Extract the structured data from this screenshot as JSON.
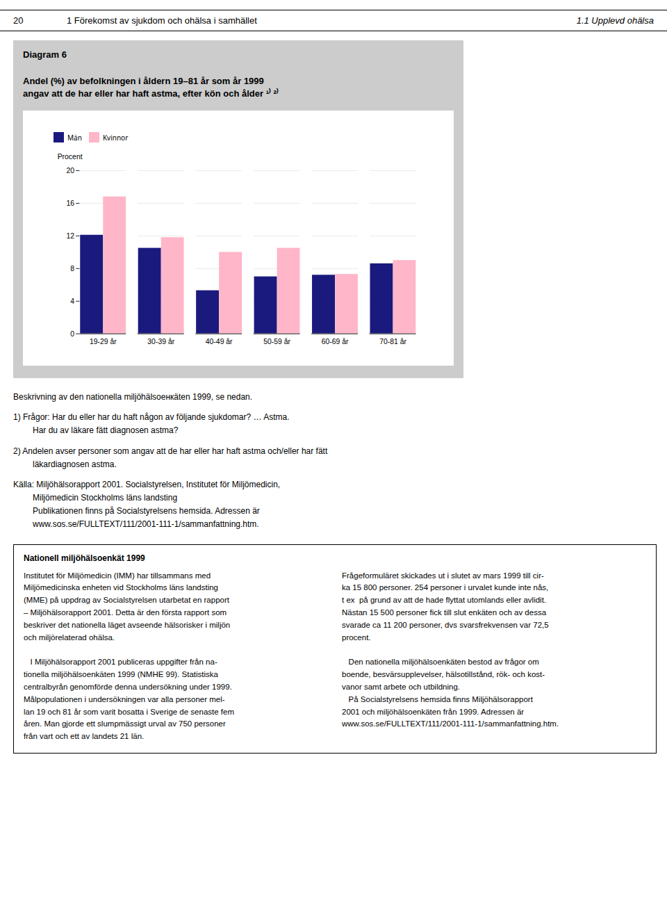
{
  "header": {
    "left": "20",
    "center": "1  Förekomst av sjukdom och ohälsa i samhället",
    "right": "1.1  Upplevd ohälsa"
  },
  "chart_data": {
    "type": "bar",
    "title": "Diagram 6",
    "subtitle": [
      "Andel (%) av befolkningen i åldern 19–81 år som år 1999",
      "angav att de har eller har haft astma, efter kön och ålder ¹⁾ ²⁾"
    ],
    "ylabel": "Procent",
    "categories": [
      "19-29 år",
      "30-39 år",
      "40-49 år",
      "50-59 år",
      "60-69 år",
      "70-81 år"
    ],
    "series": [
      {
        "name": "Män",
        "color": "#1a1a7e",
        "values": [
          12.1,
          10.5,
          5.3,
          7.0,
          7.2,
          8.6
        ]
      },
      {
        "name": "Kvinnor",
        "color": "#FFB6C8",
        "values": [
          16.8,
          11.8,
          10.0,
          10.5,
          7.3,
          9.0
        ]
      }
    ],
    "ylim": [
      0,
      20
    ],
    "yticks": [
      0,
      4,
      8,
      12,
      16,
      20
    ],
    "grid": true,
    "legend": "top"
  },
  "footnotes": [
    [
      "Beskrivning av den nationella miljöhälsoенкäten 1999, se nedan."
    ],
    [
      "1)  Frågor:  Har du eller har du haft någon av följande sjukdomar? … Astma.",
      "Har du av läkare fätt diagnosen astma?"
    ],
    [
      "2)  Andelen avser personer som angav att de har eller har haft astma och/eller har fätt",
      "läkardiagnosen astma."
    ],
    [
      "Källa:  Miljöhälsorapport 2001. Socialstyrelsen, Institutet för Miljömedicin,",
      "Miljömedicin Stockholms läns landsting",
      "Publikationen finns på Socialstyrelsens hemsida. Adressen är",
      "www.sos.se/FULLTEXT/111/2001-111-1/sammanfattning.htm."
    ]
  ],
  "info_box": {
    "title": "Nationell miljöhälsoenkät 1999",
    "columns": [
      [
        [
          "Institutet för Miljömedicin (IMM) har tillsammans med",
          "Miljömedicinska enheten vid Stockholms läns landsting",
          "(MME) på uppdrag av Socialstyrelsen utarbetat en rapport",
          "– Miljöhälsorapport 2001. Detta är den första rapport som",
          "beskriver det nationella läget avseende hälsorisker i miljön",
          "och miljörelaterad ohälsa."
        ],
        [
          "   I Miljöhälsorapport 2001 publiceras uppgifter från na-",
          "tionella miljöhälsoenkäten 1999 (NMHE 99). Statistiska",
          "centralbyrån genomförde denna undersökning under 1999.",
          "Målpopulationen i undersökningen var alla personer mel-",
          "lan 19 och 81 år som varit bosatta i Sverige de senaste fem",
          "åren. Man gjorde ett slumpmässigt urval av 750 personer",
          "från vart och ett av landets 21 län."
        ]
      ],
      [
        [
          "Frågeformuläret skickades ut i slutet av mars 1999 till cir-",
          "ka 15 800 personer. 254 personer i urvalet kunde inte nås,",
          "t ex  på grund av att de hade flyttat utomlands eller avlidit.",
          "Nästan 15 500 personer fick till slut enkäten och av dessa",
          "svarade ca 11 200 personer, dvs svarsfrekvensen var 72,5",
          "procent."
        ],
        [
          "   Den nationella miljöhälsoenkäten bestod av frågor om",
          "boende, besvärsupplevelser, hälsotillstånd, rök- och kost-",
          "vanor samt arbete och utbildning.",
          "   På Socialstyrelsens hemsida finns Miljöhälsorapport",
          "2001 och miljöhälsoenkäten från 1999. Adressen är",
          "www.sos.se/FULLTEXT/111/2001-111-1/sammanfattning.htm."
        ]
      ]
    ]
  }
}
